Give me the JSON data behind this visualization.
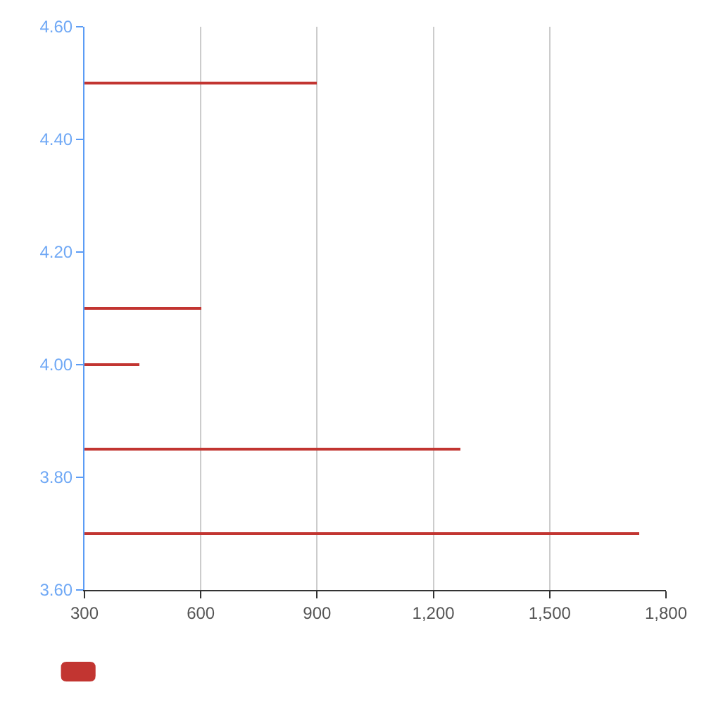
{
  "chart_data": {
    "type": "bar",
    "orientation": "horizontal",
    "x": [
      4.5,
      4.1,
      4.0,
      3.85,
      3.7
    ],
    "values": [
      900,
      600,
      440,
      1270,
      1730
    ],
    "color": "#c23531",
    "xlim": [
      300,
      1800
    ],
    "xticks": [
      300,
      600,
      900,
      {
        "value": 1200,
        "label": "1,200"
      },
      {
        "value": 1500,
        "label": "1,500"
      },
      {
        "value": 1800,
        "label": "1,800"
      }
    ],
    "ylim": [
      3.6,
      4.6
    ],
    "yticks": [
      {
        "value": 3.6,
        "label": "3.60"
      },
      {
        "value": 3.8,
        "label": "3.80"
      },
      {
        "value": 4.0,
        "label": "4.00"
      },
      {
        "value": 4.2,
        "label": "4.20"
      },
      {
        "value": 4.4,
        "label": "4.40"
      },
      {
        "value": 4.6,
        "label": "4.60"
      }
    ],
    "grid": "x"
  }
}
